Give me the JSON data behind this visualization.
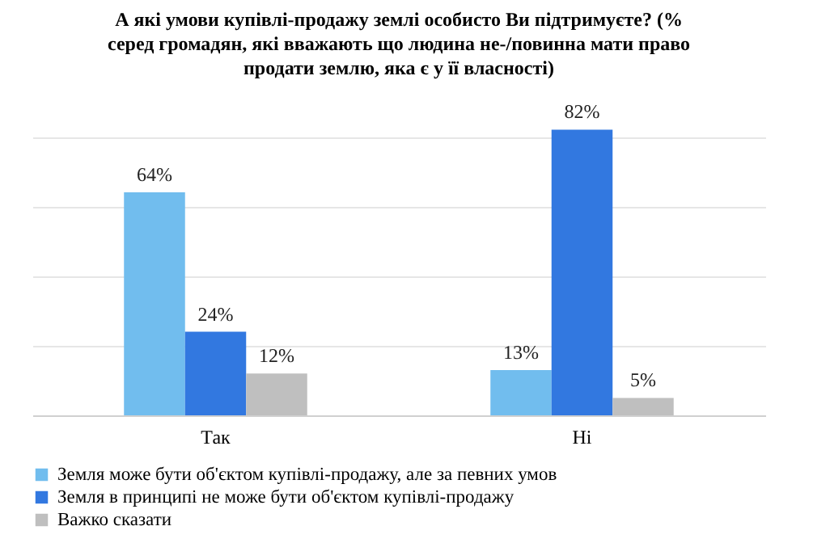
{
  "chart_data": {
    "type": "bar",
    "title": "А які умови купівлі-продажу землі особисто Ви підтримуєте? (% серед громадян, які вважають що людина не-/повинна мати право продати землю, яка є у її власності)",
    "categories": [
      "Так",
      "Ні"
    ],
    "series": [
      {
        "name": "Земля може бути об'єктом купівлі-продажу, але за певних умов",
        "color": "#71bdee",
        "values": [
          64,
          13
        ],
        "value_labels": [
          "64%",
          "13%"
        ]
      },
      {
        "name": "Земля в принципі не може бути об'єктом купівлі-продажу",
        "color": "#3278e0",
        "values": [
          24,
          82
        ],
        "value_labels": [
          "24%",
          "82%"
        ]
      },
      {
        "name": "Важко сказати",
        "color": "#bfbfbf",
        "values": [
          12,
          5
        ],
        "value_labels": [
          "12%",
          "5%"
        ]
      }
    ],
    "grid": "y",
    "tick_labels": "x",
    "legend": "bottom"
  }
}
